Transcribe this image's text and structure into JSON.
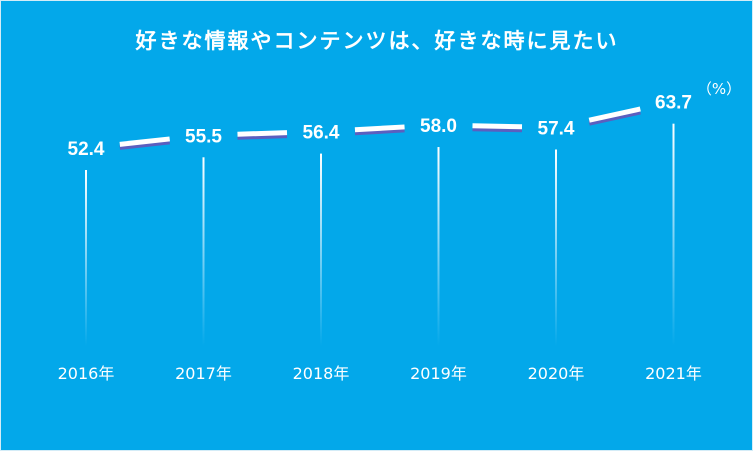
{
  "colors": {
    "background": "#03a8ea",
    "line": "#ffffff",
    "line_shadow": "#5b5fbf",
    "guide_top": "#ffffff",
    "guide_bottom": "#03a8ea"
  },
  "chart_data": {
    "type": "line",
    "title": "好きな情報やコンテンツは、好きな時に見たい",
    "unit": "（%）",
    "xlabel": "",
    "ylabel": "",
    "categories": [
      "2016年",
      "2017年",
      "2018年",
      "2019年",
      "2020年",
      "2021年"
    ],
    "series": [
      {
        "values": [
          52.4,
          55.5,
          56.4,
          58.0,
          57.4,
          63.7
        ]
      }
    ],
    "value_labels": [
      "52.4",
      "55.5",
      "56.4",
      "58.0",
      "57.4",
      "63.7"
    ],
    "grid": false,
    "legend": "none"
  }
}
